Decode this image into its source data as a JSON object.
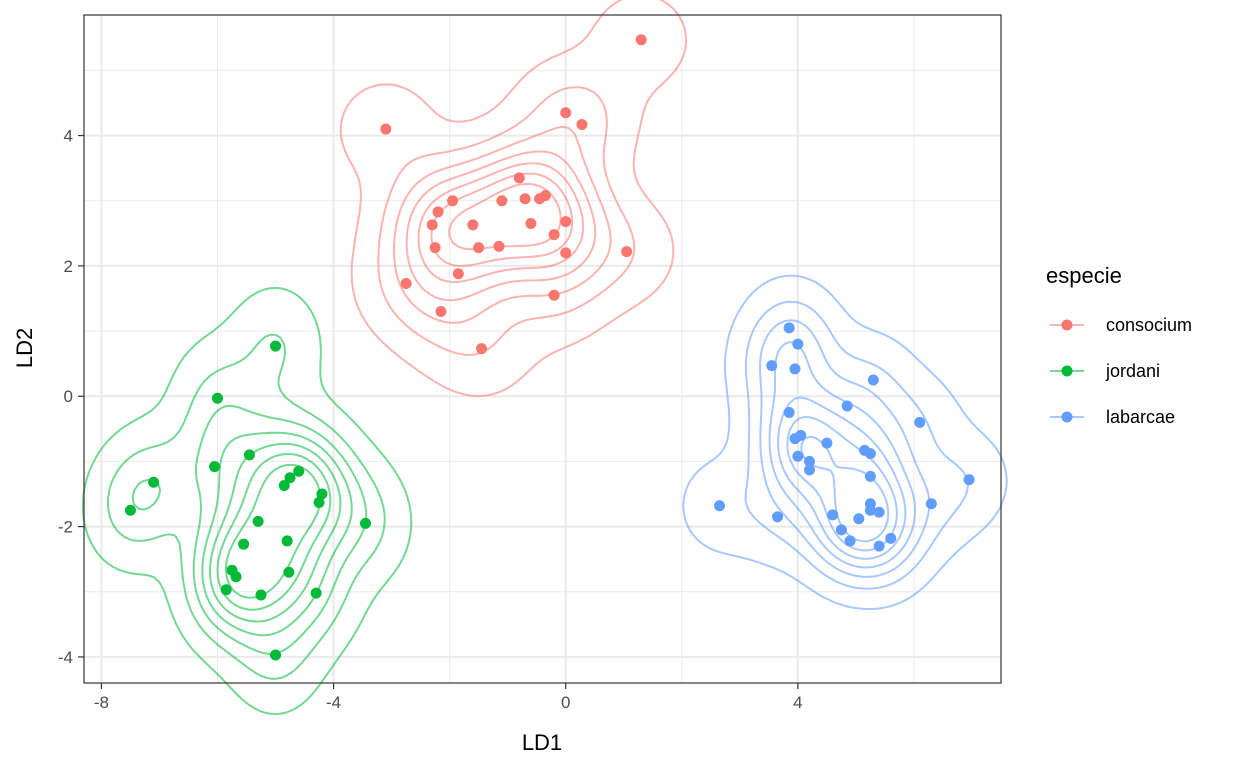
{
  "chart_data": {
    "type": "scatter",
    "title": "",
    "xlabel": "LD1",
    "ylabel": "LD2",
    "xlim": [
      -8.3,
      7.5
    ],
    "ylim": [
      -4.4,
      5.85
    ],
    "x_ticks": [
      -8,
      -4,
      0,
      4
    ],
    "y_ticks": [
      -4,
      -2,
      0,
      2,
      4
    ],
    "grid": true,
    "density_contours": true,
    "legend": {
      "title": "especie",
      "position": "right"
    },
    "series": [
      {
        "name": "consocium",
        "color": "#F8766D",
        "points": [
          [
            1.3,
            5.47
          ],
          [
            -3.1,
            4.1
          ],
          [
            0.0,
            4.35
          ],
          [
            0.28,
            4.17
          ],
          [
            -0.8,
            3.35
          ],
          [
            -1.95,
            3.0
          ],
          [
            -1.1,
            3.0
          ],
          [
            -0.7,
            3.03
          ],
          [
            -0.45,
            3.03
          ],
          [
            -0.35,
            3.08
          ],
          [
            -2.2,
            2.83
          ],
          [
            -2.3,
            2.63
          ],
          [
            -1.6,
            2.63
          ],
          [
            -0.6,
            2.65
          ],
          [
            0.0,
            2.68
          ],
          [
            -0.2,
            2.48
          ],
          [
            -2.25,
            2.28
          ],
          [
            -1.5,
            2.28
          ],
          [
            -1.15,
            2.3
          ],
          [
            0.0,
            2.2
          ],
          [
            1.05,
            2.22
          ],
          [
            -1.85,
            1.88
          ],
          [
            -2.75,
            1.73
          ],
          [
            -0.2,
            1.55
          ],
          [
            -2.15,
            1.3
          ],
          [
            -1.45,
            0.73
          ]
        ]
      },
      {
        "name": "jordani",
        "color": "#00BA38",
        "points": [
          [
            -5.0,
            0.77
          ],
          [
            -6.0,
            -0.03
          ],
          [
            -6.05,
            -1.08
          ],
          [
            -5.45,
            -0.9
          ],
          [
            -7.1,
            -1.32
          ],
          [
            -7.5,
            -1.75
          ],
          [
            -4.6,
            -1.15
          ],
          [
            -4.75,
            -1.25
          ],
          [
            -4.85,
            -1.37
          ],
          [
            -4.2,
            -1.5
          ],
          [
            -4.25,
            -1.63
          ],
          [
            -3.45,
            -1.95
          ],
          [
            -5.3,
            -1.92
          ],
          [
            -4.8,
            -2.22
          ],
          [
            -5.55,
            -2.27
          ],
          [
            -5.75,
            -2.67
          ],
          [
            -5.68,
            -2.77
          ],
          [
            -4.77,
            -2.7
          ],
          [
            -5.85,
            -2.97
          ],
          [
            -5.25,
            -3.05
          ],
          [
            -4.3,
            -3.02
          ],
          [
            -5.0,
            -3.97
          ]
        ]
      },
      {
        "name": "labarcae",
        "color": "#619CFF",
        "points": [
          [
            3.85,
            1.05
          ],
          [
            4.0,
            0.8
          ],
          [
            3.55,
            0.47
          ],
          [
            3.95,
            0.42
          ],
          [
            5.3,
            0.25
          ],
          [
            3.85,
            -0.25
          ],
          [
            4.85,
            -0.15
          ],
          [
            6.1,
            -0.4
          ],
          [
            4.05,
            -0.6
          ],
          [
            3.95,
            -0.65
          ],
          [
            4.5,
            -0.72
          ],
          [
            5.15,
            -0.83
          ],
          [
            5.25,
            -0.88
          ],
          [
            4.0,
            -0.92
          ],
          [
            4.2,
            -1.0
          ],
          [
            4.2,
            -1.13
          ],
          [
            5.25,
            -1.23
          ],
          [
            6.95,
            -1.28
          ],
          [
            2.65,
            -1.68
          ],
          [
            5.25,
            -1.65
          ],
          [
            6.3,
            -1.65
          ],
          [
            5.25,
            -1.75
          ],
          [
            5.4,
            -1.78
          ],
          [
            3.65,
            -1.85
          ],
          [
            4.6,
            -1.82
          ],
          [
            5.05,
            -1.88
          ],
          [
            4.75,
            -2.05
          ],
          [
            5.6,
            -2.18
          ],
          [
            4.9,
            -2.22
          ],
          [
            5.4,
            -2.3
          ]
        ]
      }
    ]
  }
}
